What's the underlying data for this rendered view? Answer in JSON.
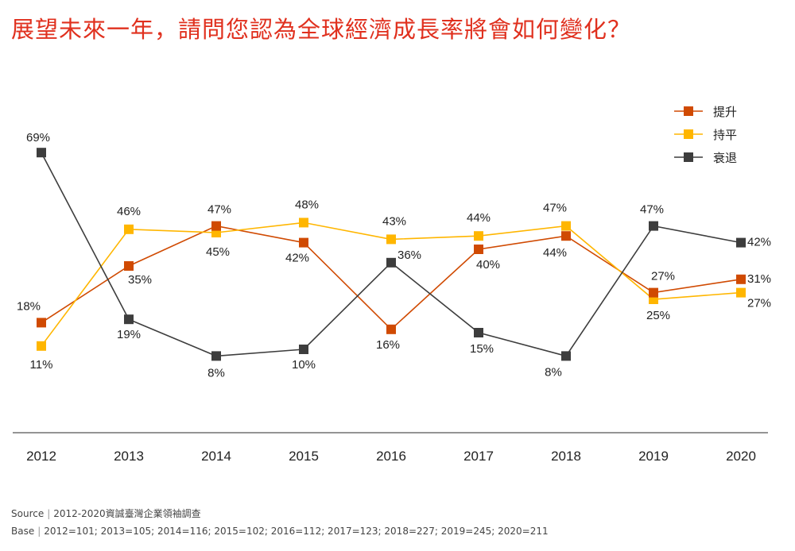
{
  "title": "展望未來一年，請問您認為全球經濟成長率將會如何變化？",
  "footer": {
    "source_label": "Source",
    "source_text": "2012-2020資誠臺灣企業領袖調查",
    "base_label": "Base",
    "base_text": "2012=101; 2013=105; 2014=116; 2015=102; 2016=112; 2017=123; 2018=227; 2019=245; 2020=211"
  },
  "chart_data": {
    "type": "line",
    "title": "展望未來一年，請問您認為全球經濟成長率將會如何變化？",
    "x": [
      "2012",
      "2013",
      "2014",
      "2015",
      "2016",
      "2017",
      "2018",
      "2019",
      "2020"
    ],
    "ylim": [
      0,
      80
    ],
    "grid": false,
    "legend_position": "top-right",
    "value_suffix": "%",
    "series": [
      {
        "name": "提升",
        "color": "#d04a02",
        "values": [
          18,
          35,
          47,
          42,
          16,
          40,
          44,
          27,
          31
        ]
      },
      {
        "name": "持平",
        "color": "#ffb600",
        "values": [
          11,
          46,
          45,
          48,
          43,
          44,
          47,
          25,
          27
        ]
      },
      {
        "name": "衰退",
        "color": "#3d3d3d",
        "values": [
          69,
          19,
          8,
          10,
          36,
          15,
          8,
          47,
          42
        ]
      }
    ]
  }
}
